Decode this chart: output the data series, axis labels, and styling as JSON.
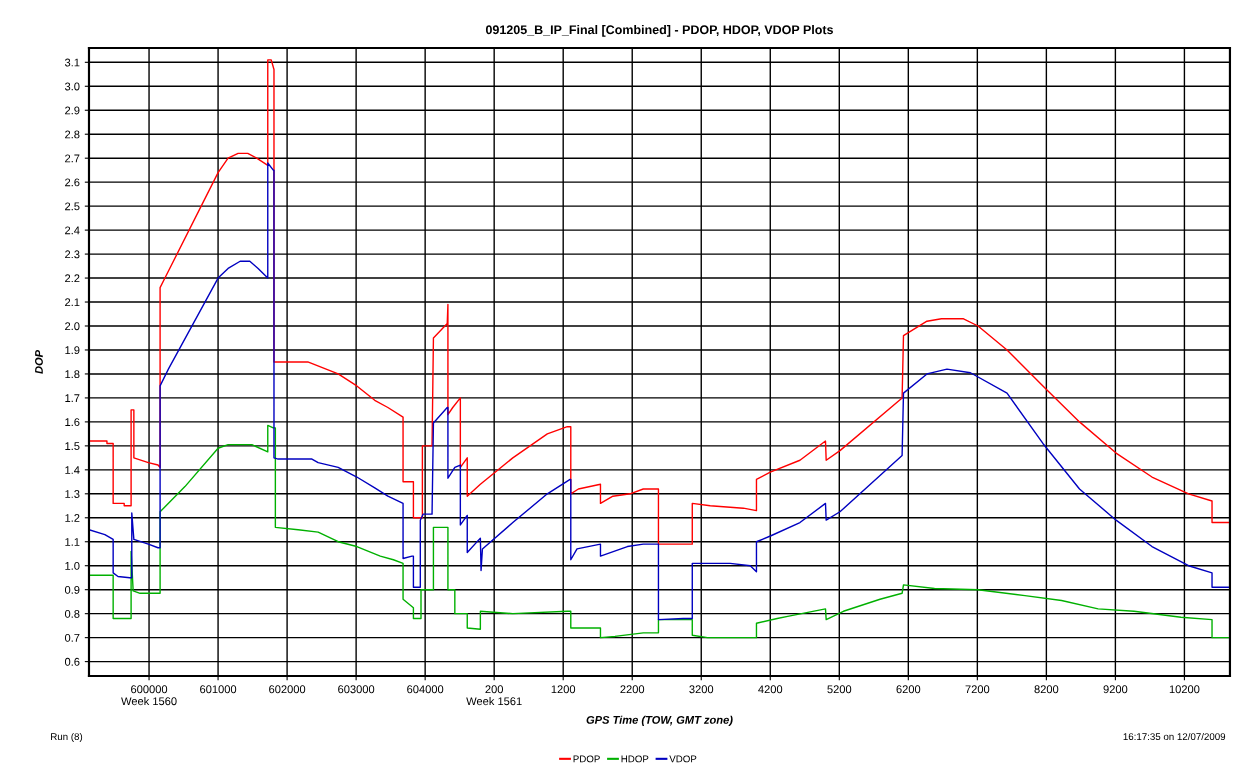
{
  "chart_data": {
    "type": "line",
    "title": "091205_B_IP_Final [Combined] - PDOP, HDOP, VDOP Plots",
    "xlabel": "GPS Time (TOW, GMT zone)",
    "ylabel": "DOP",
    "annotations": [
      "Run (8)",
      "16:17:35 on 12/07/2009"
    ],
    "xlim": [
      599130,
      615660
    ],
    "ylim": [
      0.54,
      3.16
    ],
    "xticks": [
      {
        "value": 600000,
        "label": "600000\nWeek 1560"
      },
      {
        "value": 601000,
        "label": "601000"
      },
      {
        "value": 602000,
        "label": "602000"
      },
      {
        "value": 603000,
        "label": "603000"
      },
      {
        "value": 604000,
        "label": "604000"
      }
    ],
    "x2lim": [
      -5670,
      10860
    ],
    "x2ticks": [
      {
        "value": 200,
        "label": "200\nWeek 1561"
      },
      1200,
      2200,
      3200,
      4200,
      5200,
      6200,
      7200,
      8200,
      9200,
      10200
    ],
    "yticks": [
      0.6,
      0.7,
      0.8,
      0.9,
      {
        "value": 1,
        "label": "1.0"
      },
      1.1,
      1.2,
      1.3,
      1.4,
      1.5,
      1.6,
      1.7,
      1.8,
      1.9,
      {
        "value": 2,
        "label": "2.0"
      },
      2.1,
      2.2,
      2.3,
      2.4,
      2.5,
      2.6,
      2.7,
      2.8,
      2.9,
      {
        "value": 3,
        "label": "3.0"
      },
      3.1
    ],
    "grid": true,
    "legend": "bottom",
    "marker": "none",
    "line_style": "solid",
    "series": [
      {
        "name": "PDOP",
        "color": "#ff0000",
        "x": [
          599130,
          599390,
          599390,
          599480,
          599480,
          599640,
          599640,
          599740,
          599740,
          599780,
          599780,
          599990,
          600130,
          600160,
          600160,
          600230,
          601000,
          601145,
          601290,
          601430,
          601560,
          601720,
          601720,
          601770,
          601810,
          601810,
          602300,
          602740,
          603010,
          603270,
          603460,
          603680,
          603680,
          603830,
          603830,
          603960,
          603960,
          604100,
          604120,
          604320,
          604330,
          604330,
          604400,
          604510,
          604510,
          604610,
          604610,
          604800,
          605270,
          605770,
          606060,
          606110,
          606110,
          606220,
          606540,
          606540,
          606720,
          606970,
          607160,
          607380,
          607380,
          607870,
          607870,
          608130,
          608610,
          608800,
          608800,
          609000,
          609430,
          609800,
          609810,
          610010,
          610910,
          610930,
          611270,
          611480,
          611800,
          612010,
          612430,
          612950,
          613480,
          614010,
          614530,
          615060,
          615400,
          615400,
          615660
        ],
        "values": [
          1.52,
          1.52,
          1.51,
          1.51,
          1.26,
          1.26,
          1.25,
          1.25,
          1.65,
          1.65,
          1.45,
          1.43,
          1.42,
          1.41,
          2.16,
          2.2,
          2.64,
          2.7,
          2.72,
          2.72,
          2.7,
          2.67,
          3.11,
          3.11,
          3.07,
          1.85,
          1.85,
          1.8,
          1.75,
          1.69,
          1.66,
          1.62,
          1.35,
          1.35,
          1.2,
          1.2,
          1.5,
          1.5,
          1.95,
          2.01,
          2.09,
          1.63,
          1.66,
          1.7,
          1.41,
          1.45,
          1.29,
          1.34,
          1.45,
          1.55,
          1.58,
          1.58,
          1.3,
          1.32,
          1.34,
          1.26,
          1.29,
          1.3,
          1.32,
          1.32,
          1.09,
          1.09,
          1.26,
          1.25,
          1.24,
          1.23,
          1.36,
          1.39,
          1.44,
          1.52,
          1.44,
          1.48,
          1.7,
          1.96,
          2.02,
          2.03,
          2.03,
          2.0,
          1.9,
          1.75,
          1.6,
          1.47,
          1.37,
          1.3,
          1.27,
          1.18,
          1.18
        ]
      },
      {
        "name": "HDOP",
        "color": "#00b000",
        "x": [
          599130,
          599480,
          599480,
          599740,
          599740,
          599770,
          599870,
          600160,
          600160,
          600520,
          601000,
          601145,
          601490,
          601720,
          601720,
          601800,
          601830,
          601830,
          602160,
          602450,
          602740,
          603010,
          603350,
          603540,
          603680,
          603680,
          603830,
          603830,
          603940,
          603940,
          604120,
          604120,
          604330,
          604330,
          604430,
          604430,
          604610,
          604610,
          604800,
          604800,
          605270,
          606060,
          606110,
          606110,
          606540,
          606540,
          606750,
          607160,
          607380,
          607380,
          607870,
          607870,
          608090,
          608800,
          608800,
          609100,
          609270,
          609800,
          609810,
          610060,
          610590,
          610910,
          610930,
          611380,
          612010,
          612690,
          613220,
          613750,
          614270,
          614950,
          615400,
          615400,
          615660
        ],
        "values": [
          0.96,
          0.96,
          0.78,
          0.78,
          1.06,
          0.895,
          0.885,
          0.885,
          1.225,
          1.33,
          1.49,
          1.505,
          1.505,
          1.475,
          1.585,
          1.575,
          1.575,
          1.16,
          1.15,
          1.14,
          1.1,
          1.08,
          1.04,
          1.025,
          1.01,
          0.86,
          0.825,
          0.78,
          0.78,
          0.9,
          0.9,
          1.16,
          1.16,
          0.9,
          0.9,
          0.8,
          0.8,
          0.74,
          0.735,
          0.81,
          0.8,
          0.81,
          0.81,
          0.74,
          0.74,
          0.7,
          0.705,
          0.72,
          0.72,
          0.775,
          0.775,
          0.71,
          0.7,
          0.7,
          0.76,
          0.78,
          0.79,
          0.82,
          0.775,
          0.81,
          0.86,
          0.885,
          0.92,
          0.905,
          0.9,
          0.875,
          0.855,
          0.82,
          0.81,
          0.785,
          0.775,
          0.7,
          0.7
        ]
      },
      {
        "name": "VDOP",
        "color": "#0000c0",
        "x": [
          599130,
          599360,
          599480,
          599480,
          599550,
          599720,
          599750,
          599750,
          599780,
          599990,
          600130,
          600160,
          600160,
          600280,
          601000,
          601145,
          601320,
          601460,
          601580,
          601720,
          601720,
          601800,
          601810,
          601810,
          601870,
          602360,
          602450,
          602740,
          603010,
          603270,
          603460,
          603680,
          603680,
          603810,
          603830,
          603830,
          603930,
          603930,
          603970,
          604100,
          604120,
          604320,
          604330,
          604330,
          604430,
          604510,
          604510,
          604610,
          604610,
          604800,
          604810,
          604830,
          605270,
          605770,
          606100,
          606110,
          606110,
          606200,
          606540,
          606540,
          606930,
          607160,
          607380,
          607380,
          607740,
          607870,
          607870,
          608420,
          608710,
          608800,
          608800,
          609010,
          609430,
          609800,
          609810,
          610010,
          610910,
          610930,
          611270,
          611560,
          611900,
          612430,
          612950,
          613480,
          614010,
          614530,
          615060,
          615400,
          615400,
          615660
        ],
        "values": [
          1.15,
          1.13,
          1.11,
          0.97,
          0.955,
          0.95,
          0.95,
          1.22,
          1.11,
          1.09,
          1.075,
          1.075,
          1.75,
          1.82,
          2.2,
          2.24,
          2.27,
          2.27,
          2.24,
          2.2,
          2.68,
          2.65,
          2.65,
          1.45,
          1.445,
          1.445,
          1.43,
          1.41,
          1.37,
          1.325,
          1.29,
          1.26,
          1.03,
          1.04,
          1.04,
          0.91,
          0.91,
          1.19,
          1.215,
          1.215,
          1.595,
          1.66,
          1.66,
          1.365,
          1.41,
          1.42,
          1.17,
          1.21,
          1.055,
          1.115,
          0.98,
          1.07,
          1.18,
          1.3,
          1.36,
          1.36,
          1.025,
          1.07,
          1.09,
          1.04,
          1.08,
          1.09,
          1.09,
          0.775,
          0.78,
          0.78,
          1.01,
          1.01,
          1.0,
          0.975,
          1.1,
          1.125,
          1.18,
          1.26,
          1.19,
          1.225,
          1.46,
          1.72,
          1.8,
          1.82,
          1.805,
          1.72,
          1.51,
          1.32,
          1.19,
          1.08,
          1.0,
          0.97,
          0.91,
          0.91
        ]
      }
    ]
  }
}
